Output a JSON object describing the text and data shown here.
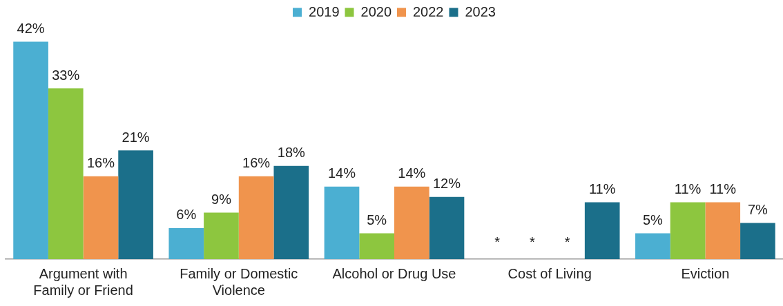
{
  "chart_data": {
    "type": "bar",
    "categories": [
      "Argument with Family or Friend",
      "Family or Domestic Violence",
      "Alcohol or Drug Use",
      "Cost of Living",
      "Eviction"
    ],
    "series": [
      {
        "name": "2019",
        "color": "#4bafd2",
        "values": [
          42,
          6,
          14,
          null,
          5
        ],
        "value_labels": [
          "42%",
          "6%",
          "14%",
          "*",
          "5%"
        ]
      },
      {
        "name": "2020",
        "color": "#8dc63f",
        "values": [
          33,
          9,
          5,
          null,
          11
        ],
        "value_labels": [
          "33%",
          "9%",
          "5%",
          "*",
          "11%"
        ]
      },
      {
        "name": "2022",
        "color": "#f0944d",
        "values": [
          16,
          16,
          14,
          null,
          11
        ],
        "value_labels": [
          "16%",
          "16%",
          "14%",
          "*",
          "11%"
        ]
      },
      {
        "name": "2023",
        "color": "#1b6f8a",
        "values": [
          21,
          18,
          12,
          11,
          7
        ],
        "value_labels": [
          "21%",
          "18%",
          "12%",
          "11%",
          "7%"
        ]
      }
    ],
    "legend": "top",
    "grid": false
  }
}
